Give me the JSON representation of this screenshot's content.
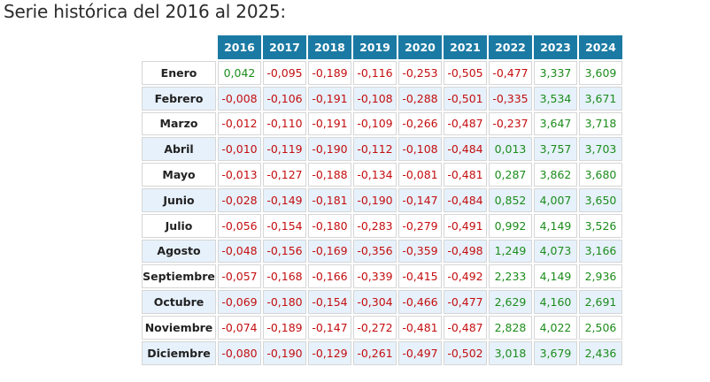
{
  "heading": "Serie histórica del 2016 al 2025:",
  "colors": {
    "header_bg": "#1b7aa3",
    "negative": "#c40e10",
    "positive": "#1c8c1c",
    "stripe": "#e6f1fb"
  },
  "years": [
    "2016",
    "2017",
    "2018",
    "2019",
    "2020",
    "2021",
    "2022",
    "2023",
    "2024"
  ],
  "rows": [
    {
      "month": "Enero",
      "values": [
        "0,042",
        "-0,095",
        "-0,189",
        "-0,116",
        "-0,253",
        "-0,505",
        "-0,477",
        "3,337",
        "3,609"
      ]
    },
    {
      "month": "Febrero",
      "values": [
        "-0,008",
        "-0,106",
        "-0,191",
        "-0,108",
        "-0,288",
        "-0,501",
        "-0,335",
        "3,534",
        "3,671"
      ]
    },
    {
      "month": "Marzo",
      "values": [
        "-0,012",
        "-0,110",
        "-0,191",
        "-0,109",
        "-0,266",
        "-0,487",
        "-0,237",
        "3,647",
        "3,718"
      ]
    },
    {
      "month": "Abril",
      "values": [
        "-0,010",
        "-0,119",
        "-0,190",
        "-0,112",
        "-0,108",
        "-0,484",
        "0,013",
        "3,757",
        "3,703"
      ]
    },
    {
      "month": "Mayo",
      "values": [
        "-0,013",
        "-0,127",
        "-0,188",
        "-0,134",
        "-0,081",
        "-0,481",
        "0,287",
        "3,862",
        "3,680"
      ]
    },
    {
      "month": "Junio",
      "values": [
        "-0,028",
        "-0,149",
        "-0,181",
        "-0,190",
        "-0,147",
        "-0,484",
        "0,852",
        "4,007",
        "3,650"
      ]
    },
    {
      "month": "Julio",
      "values": [
        "-0,056",
        "-0,154",
        "-0,180",
        "-0,283",
        "-0,279",
        "-0,491",
        "0,992",
        "4,149",
        "3,526"
      ]
    },
    {
      "month": "Agosto",
      "values": [
        "-0,048",
        "-0,156",
        "-0,169",
        "-0,356",
        "-0,359",
        "-0,498",
        "1,249",
        "4,073",
        "3,166"
      ]
    },
    {
      "month": "Septiembre",
      "values": [
        "-0,057",
        "-0,168",
        "-0,166",
        "-0,339",
        "-0,415",
        "-0,492",
        "2,233",
        "4,149",
        "2,936"
      ]
    },
    {
      "month": "Octubre",
      "values": [
        "-0,069",
        "-0,180",
        "-0,154",
        "-0,304",
        "-0,466",
        "-0,477",
        "2,629",
        "4,160",
        "2,691"
      ]
    },
    {
      "month": "Noviembre",
      "values": [
        "-0,074",
        "-0,189",
        "-0,147",
        "-0,272",
        "-0,481",
        "-0,487",
        "2,828",
        "4,022",
        "2,506"
      ]
    },
    {
      "month": "Diciembre",
      "values": [
        "-0,080",
        "-0,190",
        "-0,129",
        "-0,261",
        "-0,497",
        "-0,502",
        "3,018",
        "3,679",
        "2,436"
      ]
    }
  ]
}
